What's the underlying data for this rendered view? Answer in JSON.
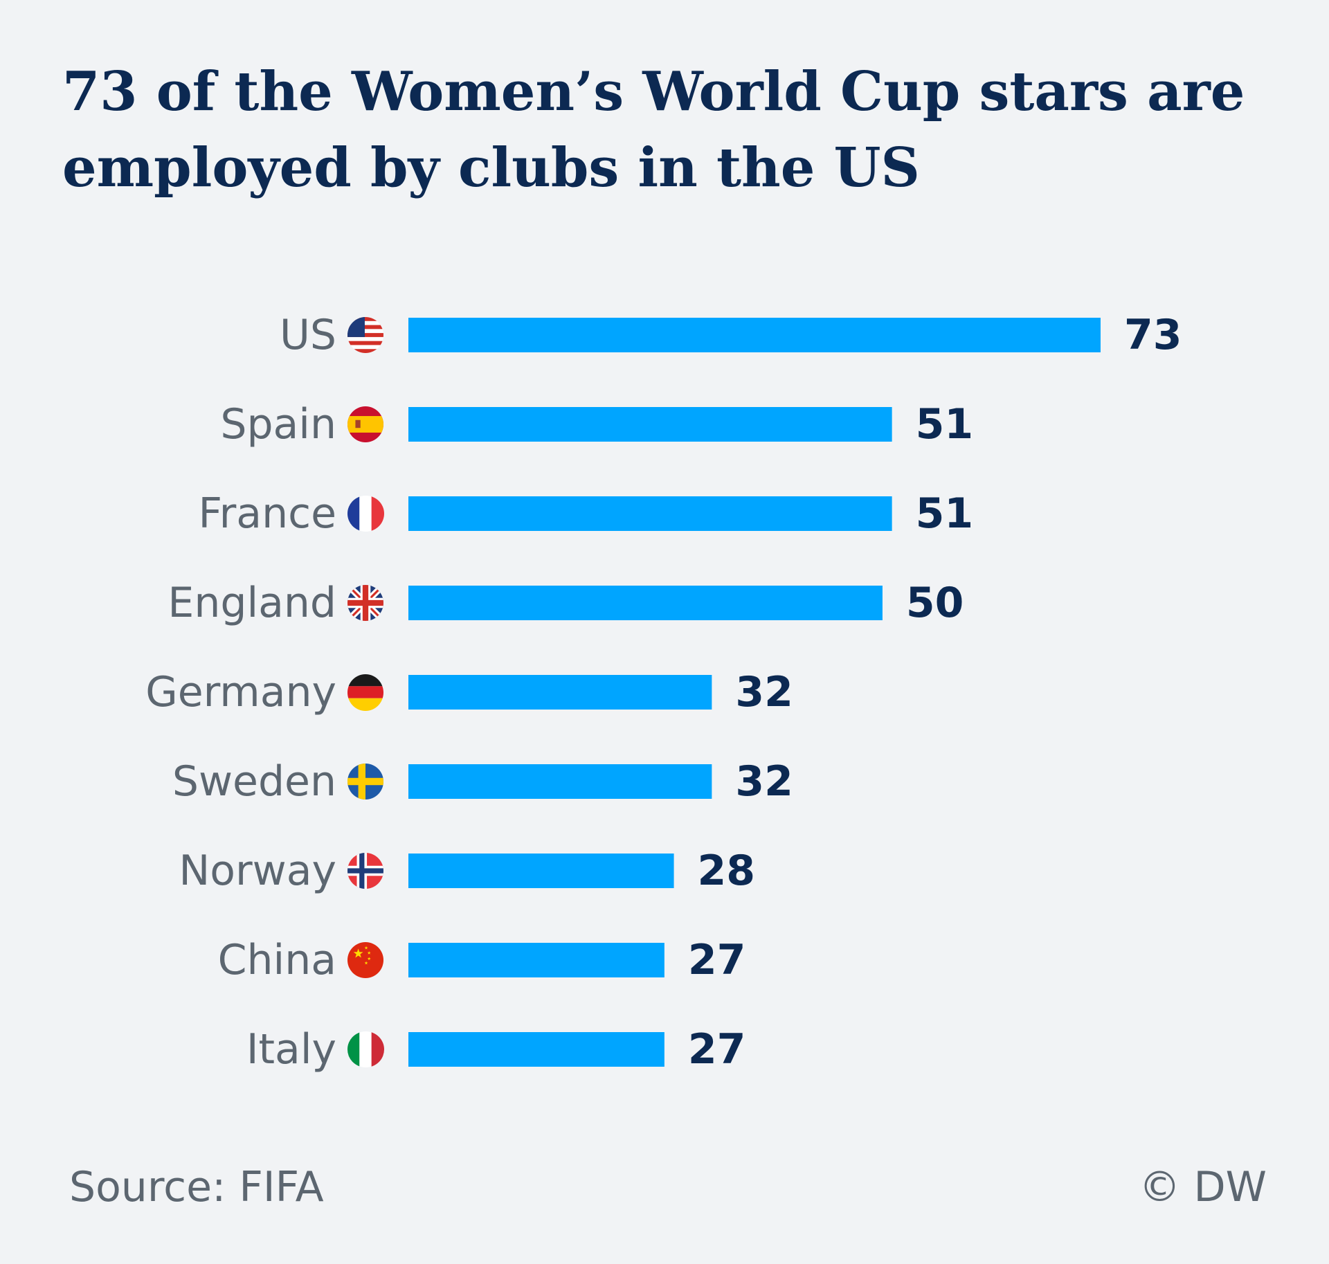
{
  "title": "73 of the Women’s World Cup stars are employed by clubs in the US",
  "source": "Source: FIFA",
  "credit": "© DW",
  "colors": {
    "bar": "#00a5ff",
    "title": "#0c2952",
    "label": "#5c6670",
    "value": "#0c2952",
    "background": "#f1f3f5"
  },
  "chart_data": {
    "type": "bar",
    "orientation": "horizontal",
    "categories": [
      "US",
      "Spain",
      "France",
      "England",
      "Germany",
      "Sweden",
      "Norway",
      "China",
      "Italy"
    ],
    "values": [
      73,
      51,
      51,
      50,
      32,
      32,
      28,
      27,
      27
    ],
    "flags": [
      "us-flag-icon",
      "spain-flag-icon",
      "france-flag-icon",
      "england-flag-icon",
      "germany-flag-icon",
      "sweden-flag-icon",
      "norway-flag-icon",
      "china-flag-icon",
      "italy-flag-icon"
    ],
    "data_labels": true,
    "grid": false,
    "legend": "none"
  }
}
